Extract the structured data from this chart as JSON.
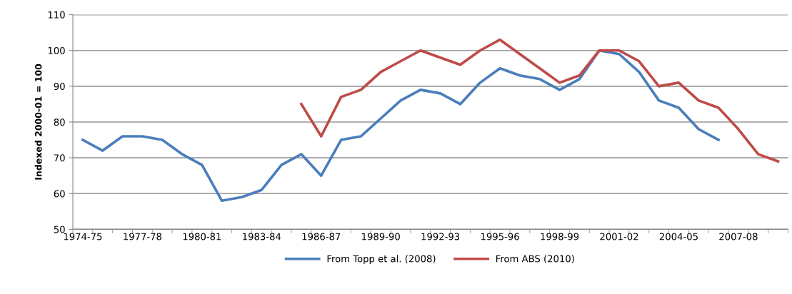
{
  "chart_data": {
    "type": "line",
    "ylabel": "Indexed 2000-01 = 100",
    "categories": [
      "1974-75",
      null,
      null,
      "1977-78",
      null,
      null,
      "1980-81",
      null,
      null,
      "1983-84",
      null,
      null,
      "1986-87",
      null,
      null,
      "1989-90",
      null,
      null,
      "1992-93",
      null,
      null,
      "1995-96",
      null,
      null,
      "1998-99",
      null,
      null,
      "2001-02",
      null,
      null,
      "2004-05",
      null,
      null,
      "2007-08",
      null,
      null
    ],
    "series": [
      {
        "name": "From Topp et al. (2008)",
        "color": "#4a7ebb",
        "values": [
          75,
          72,
          76,
          76,
          75,
          71,
          68,
          58,
          59,
          61,
          68,
          71,
          65,
          75,
          76,
          81,
          86,
          89,
          88,
          85,
          91,
          95,
          93,
          92,
          89,
          92,
          100,
          99,
          94,
          86,
          84,
          78,
          75,
          null,
          null,
          null
        ]
      },
      {
        "name": "From ABS (2010)",
        "color": "#be4b48",
        "values": [
          null,
          null,
          null,
          null,
          null,
          null,
          null,
          null,
          null,
          null,
          null,
          85,
          76,
          87,
          89,
          94,
          97,
          100,
          98,
          96,
          100,
          103,
          99,
          95,
          91,
          93,
          100,
          100,
          97,
          90,
          91,
          86,
          84,
          78,
          71,
          69
        ]
      }
    ],
    "ylim": [
      50,
      110
    ],
    "yticks": [
      50,
      60,
      70,
      80,
      90,
      100,
      110
    ],
    "grid": "y",
    "legend": "bottom",
    "marker": "none",
    "line_style": "solid"
  }
}
